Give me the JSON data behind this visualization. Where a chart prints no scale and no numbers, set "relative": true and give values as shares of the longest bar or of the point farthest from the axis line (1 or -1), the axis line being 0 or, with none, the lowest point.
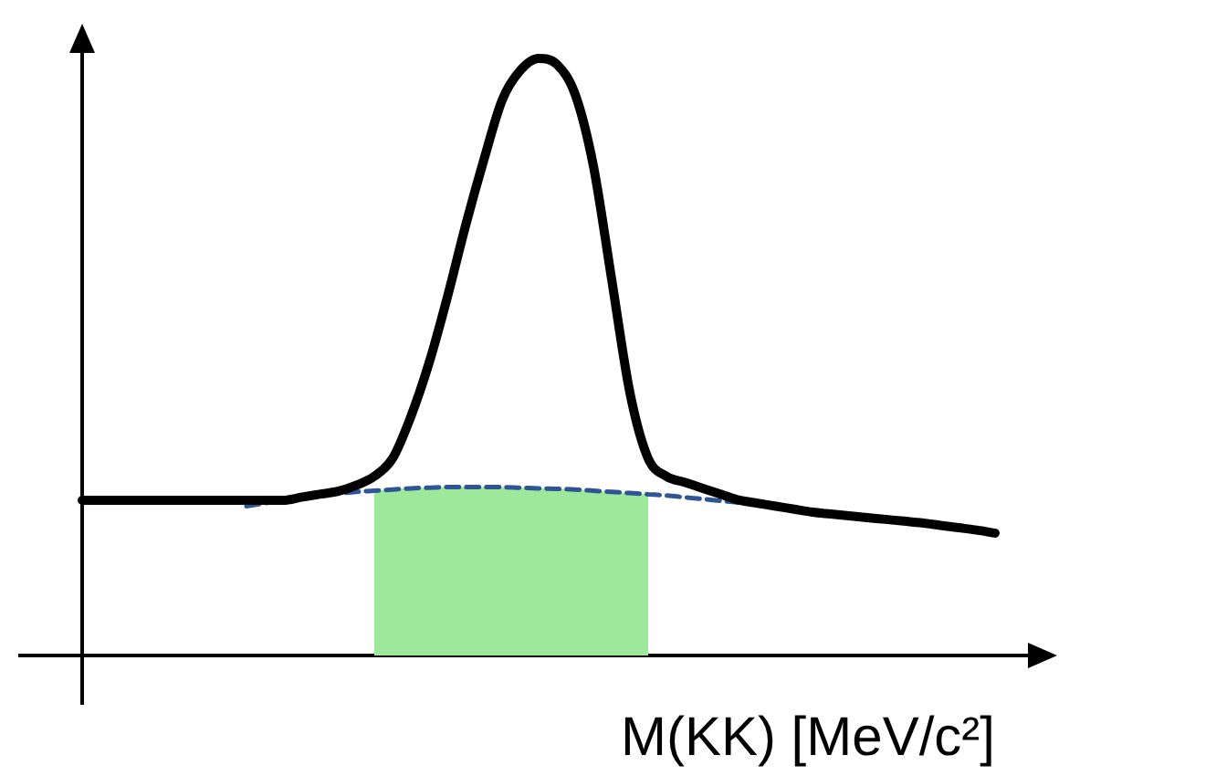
{
  "chart_data": {
    "type": "line",
    "relative": true,
    "xlabel": "M(KK) [MeV/c²]",
    "legend": false,
    "marker": "none",
    "categories": [
      null,
      null,
      null,
      null,
      null,
      null,
      null,
      null,
      null,
      null,
      null,
      null,
      null,
      null,
      null,
      null,
      null,
      null,
      null,
      null,
      null,
      null,
      null,
      null,
      null,
      null,
      null,
      null,
      null,
      null,
      null,
      null,
      null,
      null,
      null,
      null,
      null,
      null,
      null,
      null,
      null,
      null,
      null,
      null,
      null,
      null,
      null,
      null,
      null,
      null,
      null
    ],
    "series": [
      {
        "type": "line",
        "color": "#000000",
        "line_style": "solid",
        "values": [
          0.26,
          0.26,
          0.26,
          0.26,
          0.26,
          0.26,
          0.26,
          0.26,
          0.26,
          0.26,
          0.26,
          0.26,
          0.265,
          0.27,
          0.275,
          0.285,
          0.3,
          0.33,
          0.4,
          0.49,
          0.6,
          0.72,
          0.83,
          0.93,
          0.98,
          1,
          0.99,
          0.94,
          0.82,
          0.63,
          0.44,
          0.33,
          0.3,
          0.29,
          0.28,
          0.27,
          0.26,
          0.255,
          0.25,
          0.245,
          0.24,
          0.237,
          0.234,
          0.231,
          0.228,
          0.225,
          0.222,
          0.218,
          0.214,
          0.21,
          0.205
        ]
      },
      {
        "type": "line",
        "color": "#2f5597",
        "line_style": "dashed",
        "values": [
          null,
          null,
          null,
          null,
          null,
          null,
          null,
          null,
          null,
          0.25,
          0.255,
          0.26,
          0.265,
          0.268,
          0.271,
          0.274,
          0.276,
          0.278,
          0.28,
          0.281,
          0.282,
          0.282,
          0.282,
          0.282,
          0.281,
          0.28,
          0.279,
          0.278,
          0.276,
          0.274,
          0.272,
          0.27,
          0.268,
          0.265,
          0.262,
          0.259,
          0.256,
          null,
          null,
          null,
          null,
          null,
          null,
          null,
          null,
          null,
          null,
          null,
          null,
          null,
          null
        ]
      },
      {
        "type": "area",
        "color": "#9de89a",
        "values": [
          null,
          null,
          null,
          null,
          null,
          null,
          null,
          null,
          null,
          null,
          null,
          null,
          null,
          null,
          null,
          null,
          0.276,
          0.278,
          0.28,
          0.281,
          0.282,
          0.282,
          0.282,
          0.282,
          0.281,
          0.28,
          0.279,
          0.278,
          0.276,
          0.274,
          0.272,
          0.27,
          null,
          null,
          null,
          null,
          null,
          null,
          null,
          null,
          null,
          null,
          null,
          null,
          null,
          null,
          null,
          null,
          null,
          null,
          null
        ]
      }
    ]
  }
}
